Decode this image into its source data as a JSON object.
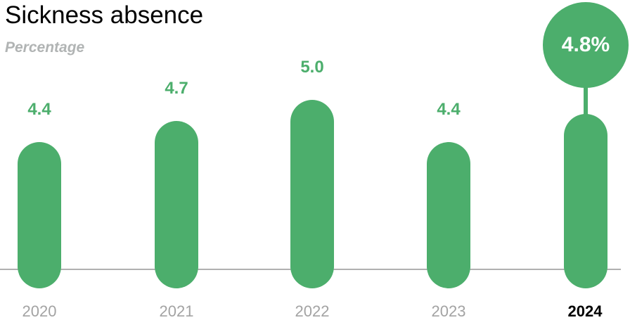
{
  "header": {
    "title": "Sickness absence",
    "subtitle": "Percentage"
  },
  "chart_data": {
    "type": "bar",
    "title": "Sickness absence",
    "subtitle": "Percentage",
    "ylabel": "Percentage",
    "xlabel": "",
    "categories": [
      "2020",
      "2021",
      "2022",
      "2023",
      "2024"
    ],
    "values": [
      4.4,
      4.7,
      5.0,
      4.4,
      4.8
    ],
    "value_labels": [
      "4.4",
      "4.7",
      "5.0",
      "4.4",
      "4.8%"
    ],
    "highlighted_category": "2024",
    "highlight_index": 4,
    "grid": false,
    "legend": false,
    "colors": {
      "bar": "#4cae6c",
      "value_label": "#4cae6c",
      "axis_line": "#b0b0b0",
      "year_label": "#a3a3a3",
      "highlight_year_label": "#000000",
      "badge_fill": "#4cae6c",
      "badge_text": "#ffffff"
    }
  }
}
